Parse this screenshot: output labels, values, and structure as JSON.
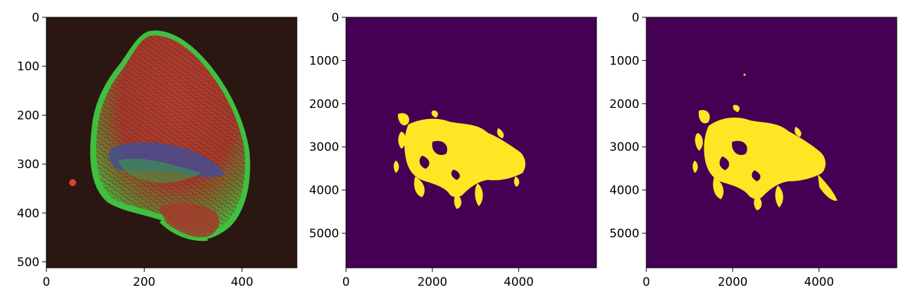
{
  "panels": [
    {
      "id": "fluorescence",
      "xticks": [
        "0",
        "200",
        "400"
      ],
      "yticks": [
        "0",
        "100",
        "200",
        "300",
        "400",
        "500"
      ],
      "xlim": [
        0,
        512
      ],
      "ylim": [
        512,
        0
      ]
    },
    {
      "id": "mask-1",
      "xticks": [
        "0",
        "2000",
        "4000"
      ],
      "yticks": [
        "0",
        "1000",
        "2000",
        "3000",
        "4000",
        "5000"
      ],
      "xlim": [
        0,
        5800
      ],
      "ylim": [
        5800,
        0
      ]
    },
    {
      "id": "mask-2",
      "xticks": [
        "0",
        "2000",
        "4000"
      ],
      "yticks": [
        "0",
        "1000",
        "2000",
        "3000",
        "4000",
        "5000"
      ],
      "xlim": [
        0,
        5800
      ],
      "ylim": [
        5800,
        0
      ]
    }
  ],
  "colors": {
    "background_dark": "#2a1712",
    "tissue_red": "#b8402f",
    "tissue_green": "#3fc040",
    "tissue_blue": "#3a4fa0",
    "mask_background": "#440154",
    "mask_foreground": "#fde725"
  }
}
